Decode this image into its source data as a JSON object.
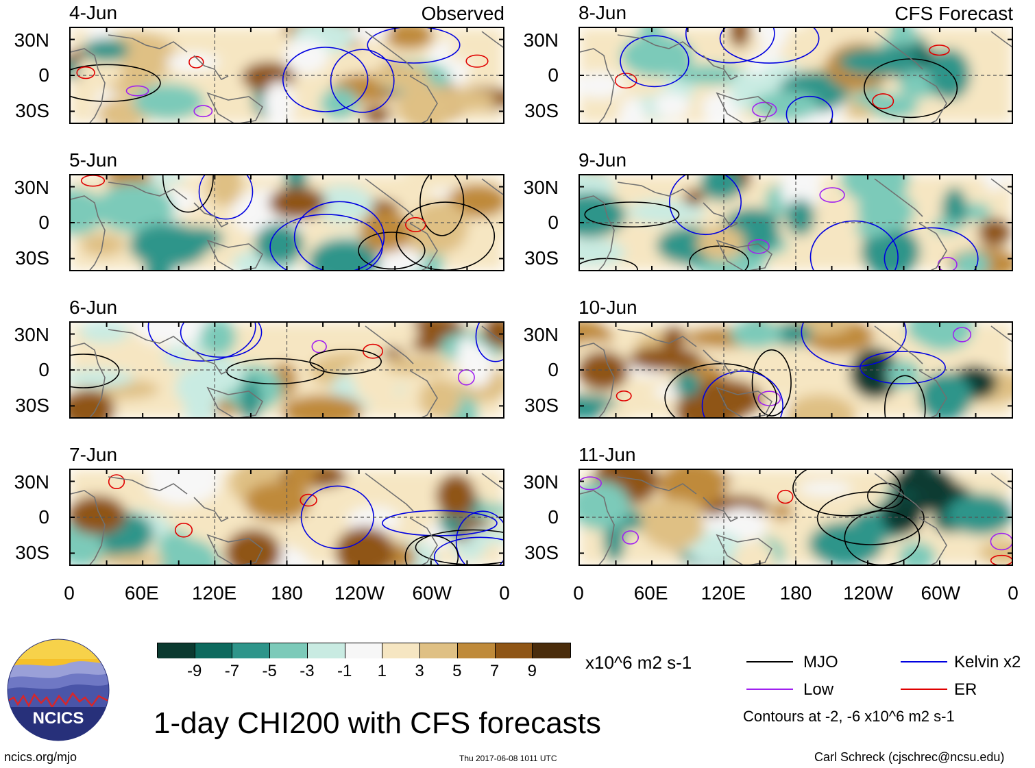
{
  "header": {
    "left_label": "Observed",
    "right_label": "CFS Forecast"
  },
  "panels": {
    "observed": [
      "4-Jun",
      "5-Jun",
      "6-Jun",
      "7-Jun"
    ],
    "forecast": [
      "8-Jun",
      "9-Jun",
      "10-Jun",
      "11-Jun"
    ]
  },
  "lat_labels": [
    "30N",
    "0",
    "30S"
  ],
  "lon_labels": [
    "0",
    "60E",
    "120E",
    "180",
    "120W",
    "60W",
    "0"
  ],
  "colorbar": {
    "colors": [
      "#0b3a30",
      "#0d6a5e",
      "#2e958a",
      "#7ccab9",
      "#c9ebe2",
      "#f7f7f7",
      "#f6e6c2",
      "#dfc084",
      "#bf8a3a",
      "#8f5515",
      "#4a2c0b"
    ],
    "ticks": [
      "-9",
      "-7",
      "-5",
      "-3",
      "-1",
      "1",
      "3",
      "5",
      "7",
      "9"
    ],
    "units": "x10^6 m2 s-1"
  },
  "legend": {
    "items": [
      {
        "label": "MJO",
        "color": "#000000"
      },
      {
        "label": "Kelvin x2",
        "color": "#0000e0"
      },
      {
        "label": "Low",
        "color": "#a020f0"
      },
      {
        "label": "ER",
        "color": "#e00000"
      }
    ],
    "note": "Contours at -2, -6 x10^6 m2 s-1"
  },
  "title": "1-day CHI200 with CFS forecasts",
  "logo": {
    "text": "NCICS"
  },
  "footer": {
    "url": "ncics.org/mjo",
    "timestamp": "Thu 2017-06-08 1011 UTC",
    "credit": "Carl Schreck (cjschrec@ncsu.edu)"
  }
}
